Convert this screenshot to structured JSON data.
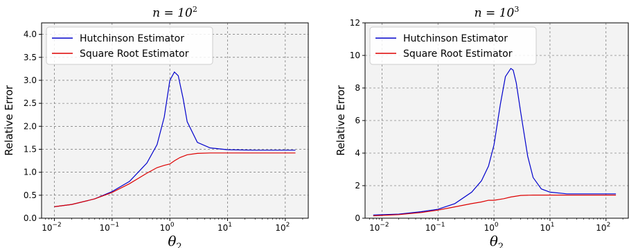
{
  "chart_data": [
    {
      "type": "line",
      "title_prefix": "n = 10",
      "title_exp": "2",
      "xlabel_base": "θ",
      "xlabel_sub": "2",
      "ylabel": "Relative Error",
      "xscale": "log",
      "xlim": [
        0.006,
        250
      ],
      "ylim": [
        0,
        4.25
      ],
      "yticks": [
        "0.0",
        "0.5",
        "1.0",
        "1.5",
        "2.0",
        "2.5",
        "3.0",
        "3.5",
        "4.0"
      ],
      "ytick_values": [
        0,
        0.5,
        1,
        1.5,
        2,
        2.5,
        3,
        3.5,
        4
      ],
      "xticks": [
        {
          "base": "10",
          "exp": "−2",
          "v": 0.01
        },
        {
          "base": "10",
          "exp": "−1",
          "v": 0.1
        },
        {
          "base": "10",
          "exp": "0",
          "v": 1
        },
        {
          "base": "10",
          "exp": "1",
          "v": 10
        },
        {
          "base": "10",
          "exp": "2",
          "v": 100
        }
      ],
      "grid": true,
      "legend_position": "top-left",
      "series": [
        {
          "name": "Hutchinson Estimator",
          "color": "#0000cc",
          "x": [
            0.01,
            0.02,
            0.05,
            0.1,
            0.2,
            0.4,
            0.6,
            0.8,
            1.0,
            1.2,
            1.4,
            1.7,
            2,
            3,
            5,
            10,
            30,
            150
          ],
          "y": [
            0.25,
            0.3,
            0.42,
            0.58,
            0.8,
            1.2,
            1.6,
            2.2,
            3.0,
            3.18,
            3.1,
            2.6,
            2.1,
            1.65,
            1.53,
            1.49,
            1.48,
            1.48
          ]
        },
        {
          "name": "Square Root Estimator",
          "color": "#dd0000",
          "x": [
            0.01,
            0.02,
            0.05,
            0.1,
            0.2,
            0.4,
            0.6,
            0.8,
            1.0,
            1.2,
            1.5,
            2,
            3,
            5,
            10,
            30,
            150
          ],
          "y": [
            0.25,
            0.3,
            0.42,
            0.56,
            0.75,
            0.98,
            1.1,
            1.15,
            1.18,
            1.25,
            1.32,
            1.38,
            1.41,
            1.42,
            1.42,
            1.42,
            1.42
          ]
        }
      ]
    },
    {
      "type": "line",
      "title_prefix": "n = 10",
      "title_exp": "3",
      "xlabel_base": "θ",
      "xlabel_sub": "2",
      "ylabel": "Relative Error",
      "xscale": "log",
      "xlim": [
        0.005,
        250
      ],
      "ylim": [
        0,
        12
      ],
      "yticks": [
        "0",
        "2",
        "4",
        "6",
        "8",
        "10",
        "12"
      ],
      "ytick_values": [
        0,
        2,
        4,
        6,
        8,
        10,
        12
      ],
      "xticks": [
        {
          "base": "10",
          "exp": "−2",
          "v": 0.01
        },
        {
          "base": "10",
          "exp": "−1",
          "v": 0.1
        },
        {
          "base": "10",
          "exp": "0",
          "v": 1
        },
        {
          "base": "10",
          "exp": "1",
          "v": 10
        },
        {
          "base": "10",
          "exp": "2",
          "v": 100
        }
      ],
      "grid": true,
      "legend_position": "top-left",
      "series": [
        {
          "name": "Hutchinson Estimator",
          "color": "#0000cc",
          "x": [
            0.007,
            0.02,
            0.05,
            0.1,
            0.2,
            0.4,
            0.6,
            0.8,
            1.0,
            1.3,
            1.6,
            2.0,
            2.2,
            2.5,
            3,
            4,
            5,
            7,
            10,
            20,
            50,
            150
          ],
          "y": [
            0.2,
            0.25,
            0.4,
            0.55,
            0.9,
            1.6,
            2.3,
            3.2,
            4.5,
            7.0,
            8.7,
            9.2,
            9.1,
            8.3,
            6.5,
            3.8,
            2.5,
            1.8,
            1.6,
            1.5,
            1.5,
            1.5
          ]
        },
        {
          "name": "Square Root Estimator",
          "color": "#dd0000",
          "x": [
            0.007,
            0.02,
            0.05,
            0.1,
            0.2,
            0.4,
            0.6,
            0.8,
            1.0,
            1.5,
            2,
            3,
            5,
            10,
            30,
            150
          ],
          "y": [
            0.15,
            0.22,
            0.35,
            0.5,
            0.7,
            0.9,
            1.0,
            1.1,
            1.1,
            1.2,
            1.3,
            1.4,
            1.42,
            1.42,
            1.42,
            1.42
          ]
        }
      ]
    }
  ]
}
